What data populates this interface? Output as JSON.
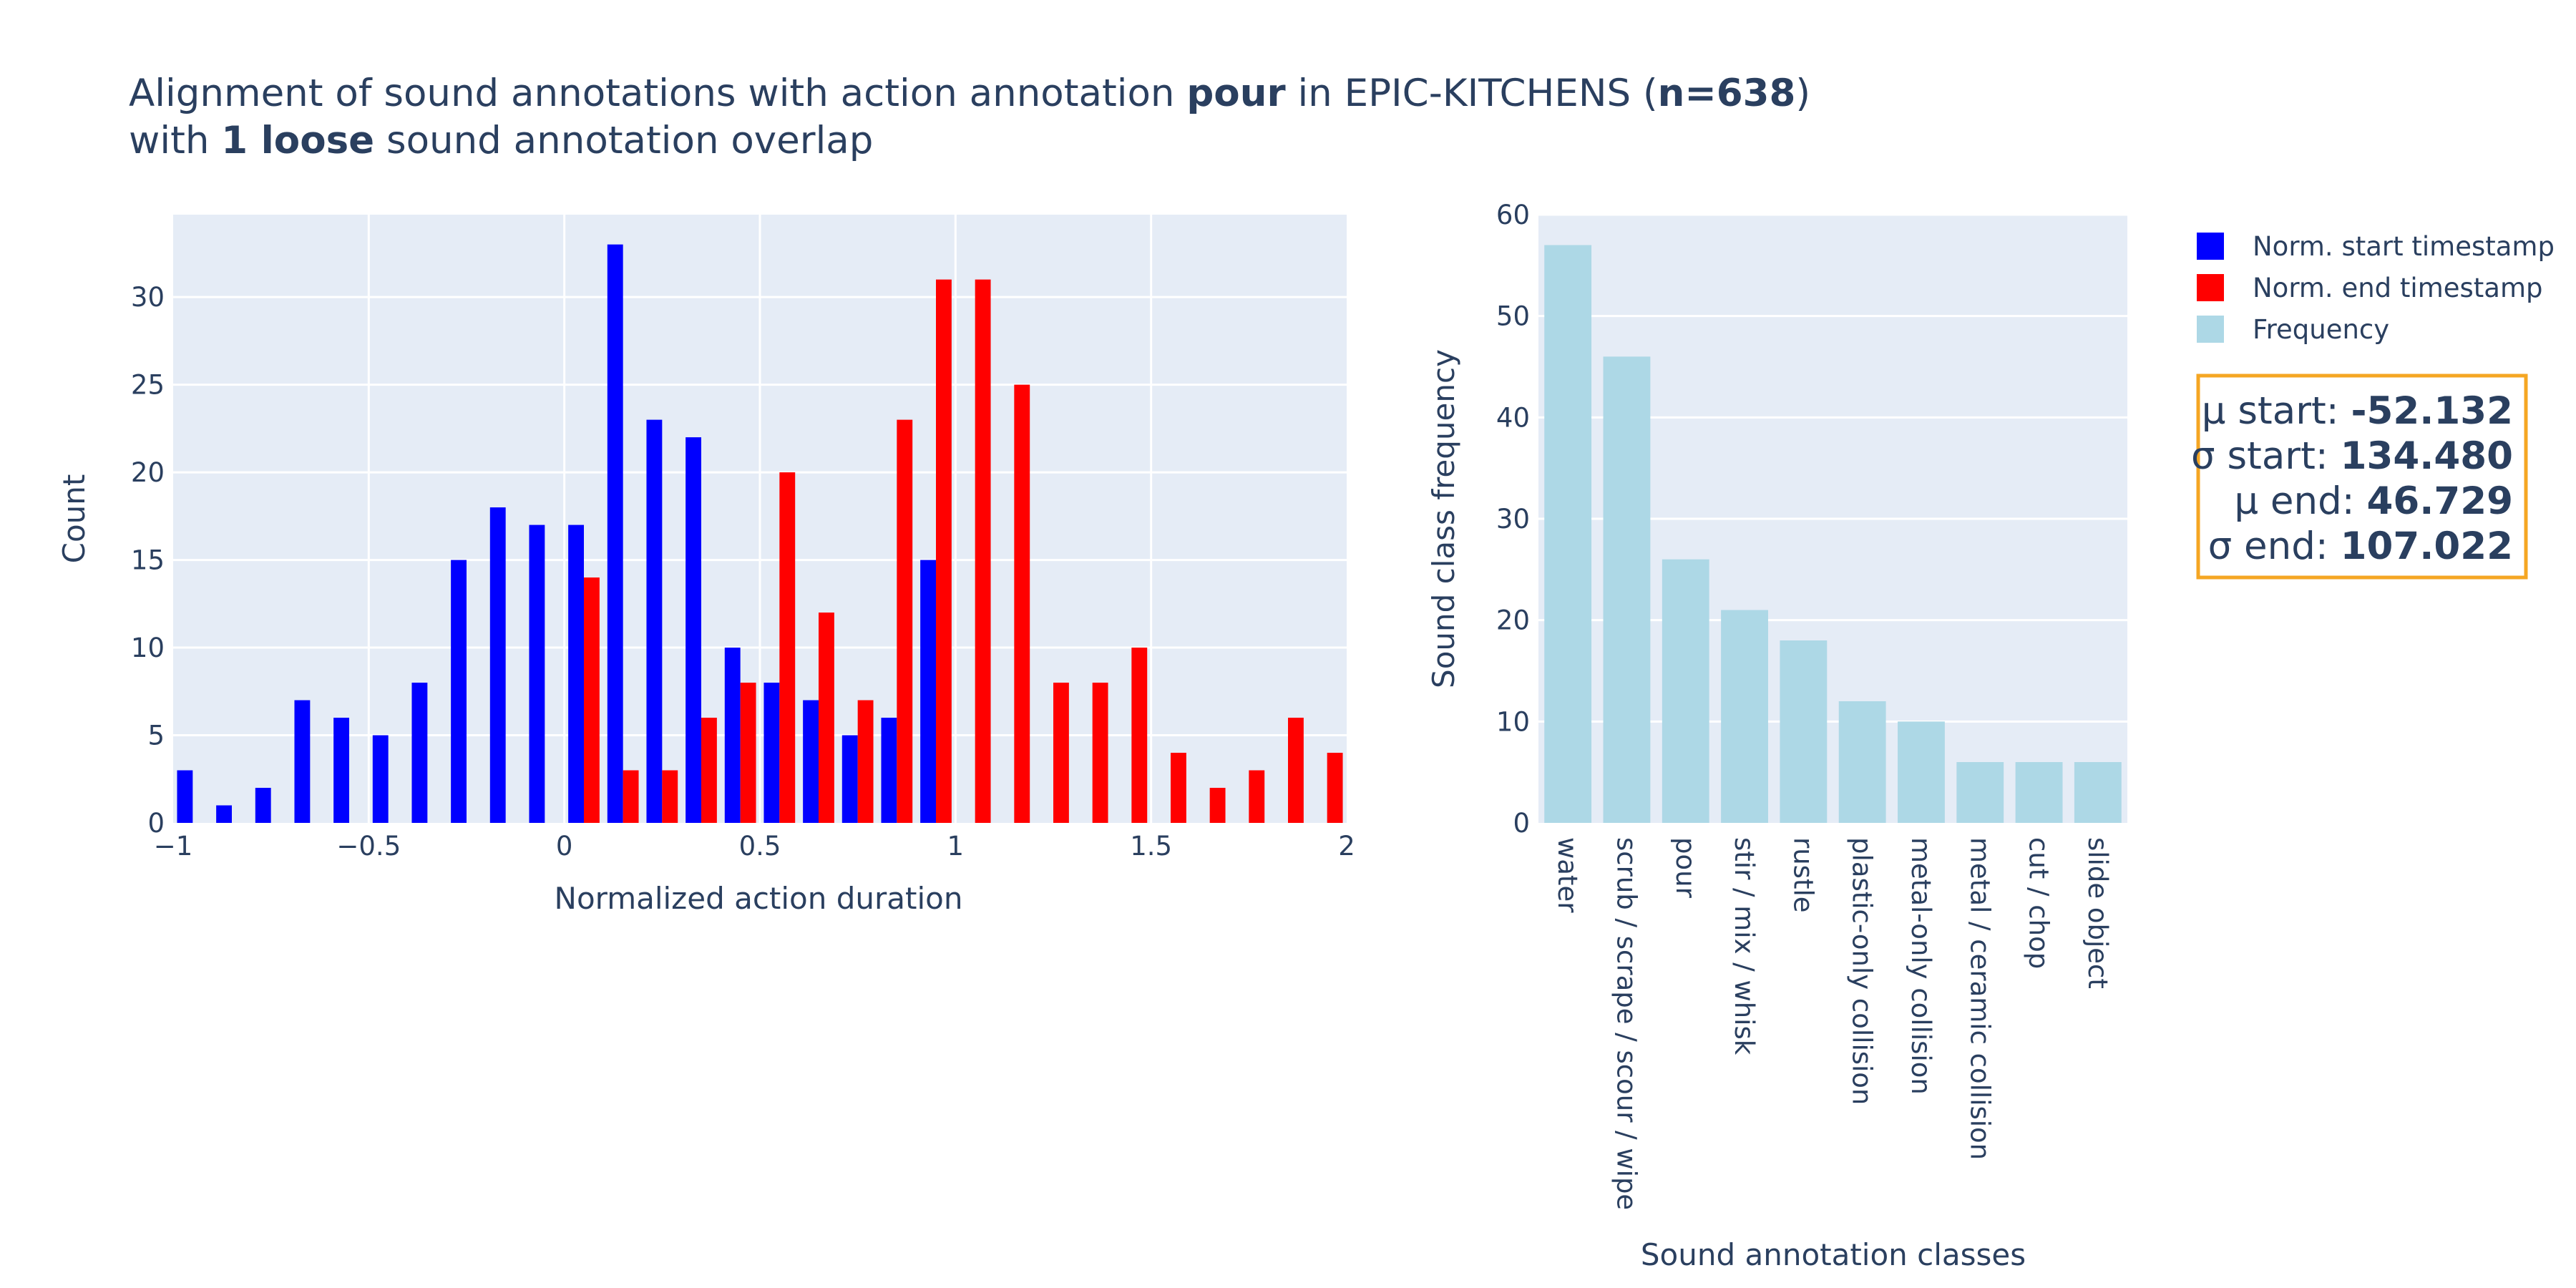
{
  "title": {
    "line1": [
      {
        "text": "Alignment of sound annotations with action annotation ",
        "bold": false
      },
      {
        "text": "pour",
        "bold": true
      },
      {
        "text": " in EPIC-KITCHENS (",
        "bold": false
      },
      {
        "text": "n=638",
        "bold": true
      },
      {
        "text": ")",
        "bold": false
      }
    ],
    "line2": [
      {
        "text": "with ",
        "bold": false
      },
      {
        "text": "1 loose",
        "bold": true
      },
      {
        "text": " sound annotation overlap",
        "bold": false
      }
    ]
  },
  "legend": {
    "items": [
      {
        "label": "Norm. start timestamp",
        "color": "#0000ff"
      },
      {
        "label": "Norm. end timestamp",
        "color": "#ff0000"
      },
      {
        "label": "Frequency",
        "color": "#add8e6"
      }
    ]
  },
  "stats_box": {
    "border_color": "#f5a623",
    "lines": [
      {
        "label": "μ start: ",
        "value": "-52.132"
      },
      {
        "label": "σ start: ",
        "value": "134.480"
      },
      {
        "label": "μ end: ",
        "value": "46.729"
      },
      {
        "label": "σ end: ",
        "value": "107.022"
      }
    ]
  },
  "chart_data": [
    {
      "type": "bar",
      "subtype": "histogram",
      "xlabel": "Normalized action duration",
      "ylabel": "Count",
      "xlim": [
        -1,
        2
      ],
      "ylim": [
        0,
        34.7
      ],
      "x_ticks": [
        -1,
        -0.5,
        0,
        0.5,
        1,
        1.5,
        2
      ],
      "x_tick_labels": [
        "−1",
        "−0.5",
        "0",
        "0.5",
        "1",
        "1.5",
        "2"
      ],
      "y_ticks": [
        0,
        5,
        10,
        15,
        20,
        25,
        30
      ],
      "bin_width": 0.1,
      "bin_starts": [
        -1.0,
        -0.9,
        -0.8,
        -0.7,
        -0.6,
        -0.5,
        -0.4,
        -0.3,
        -0.2,
        -0.1,
        0.0,
        0.1,
        0.2,
        0.3,
        0.4,
        0.5,
        0.6,
        0.7,
        0.8,
        0.9,
        1.0,
        1.1,
        1.2,
        1.3,
        1.4,
        1.5,
        1.6,
        1.7,
        1.8,
        1.9
      ],
      "grid": true,
      "plot_bgcolor": "#e5ecf6",
      "series": [
        {
          "name": "Norm. start timestamp",
          "color": "#0000ff",
          "values": [
            3,
            1,
            2,
            7,
            6,
            5,
            8,
            15,
            18,
            17,
            17,
            33,
            23,
            22,
            10,
            8,
            7,
            5,
            6,
            15,
            0,
            0,
            0,
            0,
            0,
            0,
            0,
            0,
            0,
            0
          ]
        },
        {
          "name": "Norm. end timestamp",
          "color": "#ff0000",
          "values": [
            0,
            0,
            0,
            0,
            0,
            0,
            0,
            0,
            0,
            0,
            14,
            3,
            3,
            6,
            8,
            20,
            12,
            7,
            23,
            31,
            31,
            25,
            8,
            8,
            10,
            4,
            2,
            3,
            6,
            4
          ]
        }
      ]
    },
    {
      "type": "bar",
      "xlabel": "Sound annotation classes",
      "ylabel": "Sound class frequency",
      "ylim": [
        0,
        60
      ],
      "y_ticks": [
        0,
        10,
        20,
        30,
        40,
        50,
        60
      ],
      "grid": true,
      "plot_bgcolor": "#e5ecf6",
      "categories": [
        "water",
        "scrub / scrape / scour / wipe",
        "pour",
        "stir / mix / whisk",
        "rustle",
        "plastic-only collision",
        "metal-only collision",
        "metal / ceramic collision",
        "cut / chop",
        "slide object"
      ],
      "series": [
        {
          "name": "Frequency",
          "color": "#add8e6",
          "values": [
            57,
            46,
            26,
            21,
            18,
            12,
            10,
            6,
            6,
            6
          ]
        }
      ]
    }
  ]
}
